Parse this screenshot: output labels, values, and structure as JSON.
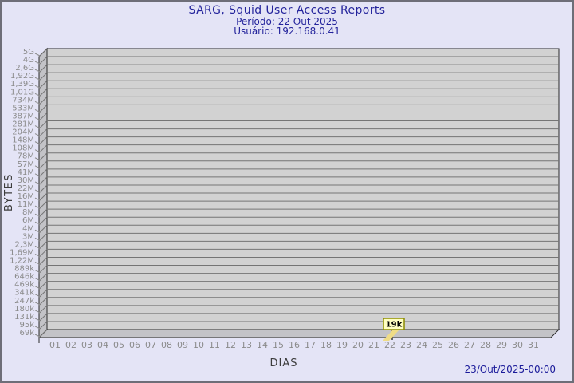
{
  "header": {
    "title": "SARG, Squid User Access Reports",
    "period": "Período: 22 Out 2025",
    "user": "Usuário: 192.168.0.41"
  },
  "footer": {
    "timestamp": "23/Out/2025-00:00"
  },
  "colors": {
    "background": "#e4e4f6",
    "frame_border": "#6e6e78",
    "plot_fill": "#d2d2d2",
    "wall_fill": "#c3c3c7",
    "gridline": "#757575",
    "edge": "#2a2a2a",
    "tick_label": "#8b8b8b",
    "axis_label": "#3c3c3c",
    "title_text": "#24249c",
    "annotation_fill": "#ffffc2",
    "annotation_border": "#8b8b00",
    "annotation_text": "#000000",
    "flag_fill": "#efdc86",
    "bar_mark": "#3a3a3a"
  },
  "chart_data": {
    "type": "bar",
    "title": "SARG, Squid User Access Reports",
    "subtitle_period": "Período: 22 Out 2025",
    "subtitle_user": "Usuário: 192.168.0.41",
    "xlabel": "DIAS",
    "ylabel": "BYTES",
    "x_categories": [
      "01",
      "02",
      "03",
      "04",
      "05",
      "06",
      "07",
      "08",
      "09",
      "10",
      "11",
      "12",
      "13",
      "14",
      "15",
      "16",
      "17",
      "18",
      "19",
      "20",
      "21",
      "22",
      "23",
      "24",
      "25",
      "26",
      "27",
      "28",
      "29",
      "30",
      "31"
    ],
    "y_scale": "log",
    "y_tick_labels_top_to_bottom": [
      "5G",
      "4G",
      "2,6G",
      "1,92G",
      "1,39G",
      "1,01G",
      "734M",
      "533M",
      "387M",
      "281M",
      "204M",
      "148M",
      "108M",
      "78M",
      "57M",
      "41M",
      "30M",
      "22M",
      "16M",
      "11M",
      "8M",
      "6M",
      "4M",
      "3M",
      "2,3M",
      "1,69M",
      "1,22M",
      "889k",
      "646k",
      "469k",
      "341k",
      "247k",
      "180k",
      "131k",
      "95k",
      "69k"
    ],
    "ylim": [
      "69k",
      "5G"
    ],
    "grid": true,
    "legend": "none",
    "series": [
      {
        "name": "bytes",
        "points": [
          {
            "day": "22",
            "value": "19k",
            "value_bytes": 19000
          }
        ]
      }
    ],
    "annotations": [
      {
        "x": "22",
        "label": "19k"
      }
    ]
  }
}
